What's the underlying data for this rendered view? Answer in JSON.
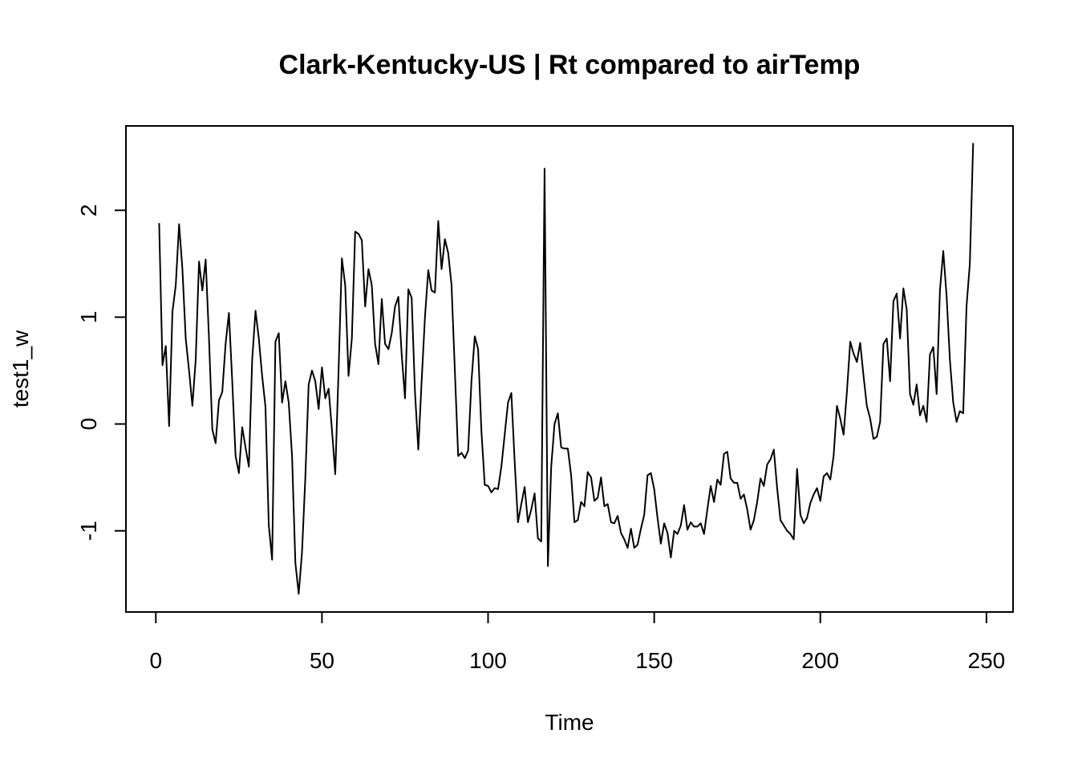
{
  "chart_data": {
    "type": "line",
    "title": "Clark-Kentucky-US | Rt compared to airTemp",
    "xlabel": "Time",
    "ylabel": "test1_w",
    "xlim": [
      -9,
      258
    ],
    "ylim": [
      -1.76,
      2.79
    ],
    "x_ticks": [
      0,
      50,
      100,
      150,
      200,
      250
    ],
    "x_tick_labels": [
      "0",
      "50",
      "100",
      "150",
      "200",
      "250"
    ],
    "y_ticks": [
      -1,
      0,
      1,
      2
    ],
    "y_tick_labels": [
      "-1",
      "0",
      "1",
      "2"
    ],
    "grid": false,
    "legend": "none",
    "color": "#000000",
    "series": [
      {
        "x_start": 1,
        "x_step": 1,
        "values": [
          1.88,
          0.55,
          0.73,
          -0.02,
          1.05,
          1.3,
          1.87,
          1.45,
          0.8,
          0.5,
          0.17,
          0.6,
          1.52,
          1.25,
          1.54,
          0.8,
          -0.05,
          -0.18,
          0.22,
          0.3,
          0.75,
          1.04,
          0.4,
          -0.3,
          -0.46,
          -0.03,
          -0.22,
          -0.4,
          0.6,
          1.06,
          0.8,
          0.45,
          0.16,
          -0.95,
          -1.27,
          0.77,
          0.85,
          0.2,
          0.4,
          0.2,
          -0.3,
          -1.3,
          -1.59,
          -1.2,
          -0.5,
          0.37,
          0.5,
          0.4,
          0.14,
          0.53,
          0.24,
          0.33,
          -0.05,
          -0.47,
          0.5,
          1.55,
          1.3,
          0.45,
          0.8,
          1.8,
          1.78,
          1.72,
          1.1,
          1.45,
          1.3,
          0.75,
          0.56,
          1.17,
          0.75,
          0.7,
          0.85,
          1.1,
          1.19,
          0.65,
          0.24,
          1.26,
          1.18,
          0.3,
          -0.24,
          0.4,
          1.0,
          1.44,
          1.25,
          1.23,
          1.9,
          1.45,
          1.73,
          1.6,
          1.3,
          0.5,
          -0.3,
          -0.27,
          -0.32,
          -0.25,
          0.4,
          0.82,
          0.7,
          -0.07,
          -0.57,
          -0.58,
          -0.64,
          -0.6,
          -0.61,
          -0.4,
          -0.1,
          0.2,
          0.29,
          -0.35,
          -0.92,
          -0.75,
          -0.59,
          -0.92,
          -0.8,
          -0.65,
          -1.07,
          -1.1,
          2.39,
          -1.33,
          -0.4,
          0.0,
          0.1,
          -0.22,
          -0.23,
          -0.23,
          -0.48,
          -0.92,
          -0.9,
          -0.73,
          -0.77,
          -0.45,
          -0.5,
          -0.72,
          -0.69,
          -0.5,
          -0.77,
          -0.75,
          -0.92,
          -0.93,
          -0.86,
          -1.02,
          -1.08,
          -1.16,
          -0.98,
          -1.16,
          -1.13,
          -0.98,
          -0.85,
          -0.48,
          -0.46,
          -0.61,
          -0.88,
          -1.12,
          -0.93,
          -1.02,
          -1.25,
          -1.0,
          -1.03,
          -0.95,
          -0.76,
          -0.99,
          -0.92,
          -0.96,
          -0.96,
          -0.93,
          -1.03,
          -0.8,
          -0.58,
          -0.73,
          -0.52,
          -0.57,
          -0.28,
          -0.26,
          -0.51,
          -0.55,
          -0.55,
          -0.7,
          -0.66,
          -0.8,
          -0.99,
          -0.9,
          -0.73,
          -0.51,
          -0.58,
          -0.38,
          -0.33,
          -0.24,
          -0.6,
          -0.9,
          -0.95,
          -1.0,
          -1.03,
          -1.08,
          -0.42,
          -0.85,
          -0.93,
          -0.88,
          -0.74,
          -0.66,
          -0.6,
          -0.72,
          -0.49,
          -0.46,
          -0.52,
          -0.3,
          0.17,
          0.05,
          -0.1,
          0.3,
          0.77,
          0.66,
          0.58,
          0.76,
          0.45,
          0.17,
          0.05,
          -0.14,
          -0.12,
          0.02,
          0.75,
          0.8,
          0.4,
          1.15,
          1.22,
          0.8,
          1.27,
          1.07,
          0.28,
          0.18,
          0.37,
          0.08,
          0.17,
          0.02,
          0.65,
          0.72,
          0.28,
          1.25,
          1.62,
          1.2,
          0.6,
          0.2,
          0.02,
          0.12,
          0.1,
          1.1,
          1.5,
          2.63
        ]
      }
    ]
  }
}
